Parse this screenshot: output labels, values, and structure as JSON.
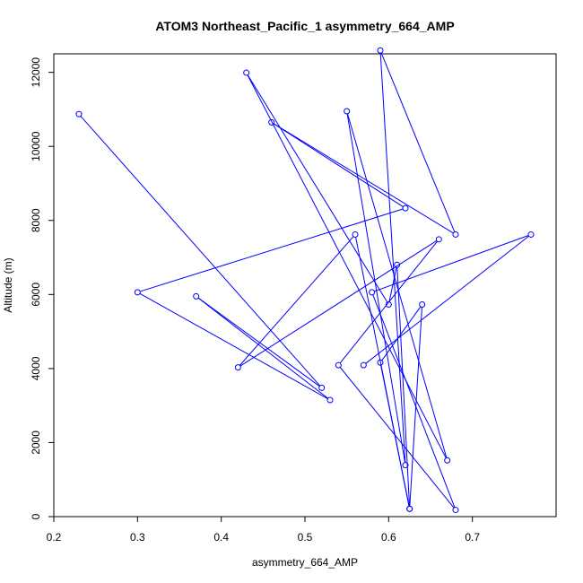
{
  "chart_data": {
    "type": "line",
    "title": "ATOM3 Northeast_Pacific_1 asymmetry_664_AMP",
    "xlabel": "asymmetry_664_AMP",
    "ylabel": "Altitude (m)",
    "xlim": [
      0.2,
      0.8
    ],
    "ylim": [
      0,
      12500
    ],
    "xticks": [
      0.2,
      0.3,
      0.4,
      0.5,
      0.6,
      0.7
    ],
    "yticks": [
      0,
      2000,
      4000,
      6000,
      8000,
      10000,
      12000
    ],
    "grid": false,
    "line_color": "#0000ff",
    "series": [
      {
        "x": [
          0.23,
          0.52,
          0.37,
          0.53,
          0.3,
          0.62,
          0.46,
          0.68,
          0.59,
          0.62,
          0.55,
          0.67,
          0.43,
          0.6,
          0.61,
          0.625,
          0.64,
          0.59,
          0.625,
          0.56,
          0.42,
          0.66,
          0.54,
          0.68,
          0.58,
          0.77,
          0.57
        ],
        "y": [
          10870,
          3480,
          5950,
          3150,
          6060,
          8330,
          10650,
          7620,
          12590,
          1390,
          10950,
          1520,
          11990,
          5730,
          6800,
          210,
          5730,
          4160,
          210,
          7620,
          4030,
          7490,
          4090,
          180,
          6060,
          7620,
          4090
        ]
      }
    ]
  }
}
